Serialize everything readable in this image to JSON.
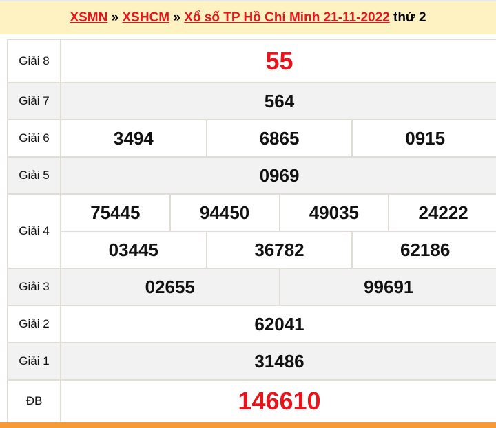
{
  "header": {
    "links": [
      "XSMN",
      "XSHCM",
      "Xổ số TP Hồ Chí Minh 21-11-2022"
    ],
    "separator": "»",
    "weekday": "thứ 2"
  },
  "results": [
    {
      "label": "Giải 8",
      "lines": [
        [
          "55"
        ]
      ],
      "highlight": true
    },
    {
      "label": "Giải 7",
      "lines": [
        [
          "564"
        ]
      ]
    },
    {
      "label": "Giải 6",
      "lines": [
        [
          "3494",
          "6865",
          "0915"
        ]
      ]
    },
    {
      "label": "Giải 5",
      "lines": [
        [
          "0969"
        ]
      ]
    },
    {
      "label": "Giải 4",
      "lines": [
        [
          "75445",
          "94450",
          "49035",
          "24222"
        ],
        [
          "03445",
          "36782",
          "62186"
        ]
      ]
    },
    {
      "label": "Giải 3",
      "lines": [
        [
          "02655",
          "99691"
        ]
      ]
    },
    {
      "label": "Giải 2",
      "lines": [
        [
          "62041"
        ]
      ]
    },
    {
      "label": "Giải 1",
      "lines": [
        [
          "31486"
        ]
      ]
    },
    {
      "label": "ĐB",
      "lines": [
        [
          "146610"
        ]
      ],
      "highlight": true
    }
  ],
  "colors": {
    "accent": "#e8141c",
    "header_bg": "#fff2c2",
    "footer_bar": "#f79a33"
  }
}
